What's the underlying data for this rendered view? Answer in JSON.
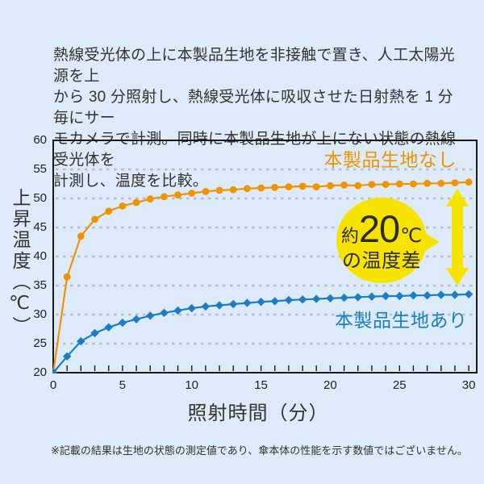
{
  "colors": {
    "background": "#dcebf7",
    "axis": "#1a1a1a",
    "gridline": "#b5bec7",
    "orange": "#f09300",
    "blue": "#1b7ec5",
    "badge_yellow": "#f6e400",
    "text_dark": "#333333"
  },
  "description": {
    "text": "熱線受光体の上に本製品生地を非接触で置き、人工太陽光源を上\nから 30 分照射し、熱線受光体に吸収させた日射熱を 1 分毎にサー\nモカメラで計測。同時に本製品生地が上にない状態の熱線受光体を\n計測し、温度を比較。"
  },
  "chart_data": {
    "type": "line",
    "xlabel": "照射時間（分）",
    "ylabel": "上昇温度（℃）",
    "xlim": [
      0,
      30
    ],
    "ylim": [
      20,
      60
    ],
    "x_ticks": [
      0,
      5,
      10,
      15,
      20,
      25,
      30
    ],
    "y_ticks": [
      20,
      25,
      30,
      35,
      40,
      45,
      50,
      55,
      60
    ],
    "x_minor_tick_every": 1,
    "grid": "horizontal-dashed",
    "legend_position": "inline-labels",
    "x": [
      0,
      1,
      2,
      3,
      4,
      5,
      6,
      7,
      8,
      9,
      10,
      11,
      12,
      13,
      14,
      15,
      16,
      17,
      18,
      19,
      20,
      21,
      22,
      23,
      24,
      25,
      26,
      27,
      28,
      29,
      30
    ],
    "series": [
      {
        "name": "本製品生地なし",
        "color": "#f09300",
        "marker": "circle",
        "values": [
          20,
          36.5,
          43.5,
          46.4,
          47.8,
          48.7,
          49.3,
          49.9,
          50.3,
          50.6,
          50.9,
          51.2,
          51.4,
          51.5,
          51.7,
          51.8,
          51.9,
          52.0,
          52.1,
          52.0,
          52.2,
          52.3,
          52.2,
          52.4,
          52.4,
          52.5,
          52.5,
          52.6,
          52.6,
          52.7,
          52.8
        ]
      },
      {
        "name": "本製品生地あり",
        "color": "#1b7ec5",
        "marker": "diamond",
        "values": [
          20,
          22.8,
          25.4,
          26.8,
          27.8,
          28.6,
          29.2,
          29.8,
          30.3,
          30.7,
          31.1,
          31.4,
          31.6,
          31.8,
          32.0,
          32.2,
          32.3,
          32.5,
          32.6,
          32.7,
          32.8,
          32.9,
          33.0,
          33.1,
          33.2,
          33.2,
          33.3,
          33.3,
          33.4,
          33.4,
          33.5
        ]
      }
    ],
    "annotation": {
      "prefix": "約",
      "value": "20",
      "unit": "℃",
      "line2": "の温度差",
      "shape": "yellow-circle-badge-with-double-arrow",
      "color": "#f6e400"
    }
  },
  "footnote": {
    "text": "※記載の結果は生地の状態の測定値であり、傘本体の性能を示す数値ではございません。"
  }
}
